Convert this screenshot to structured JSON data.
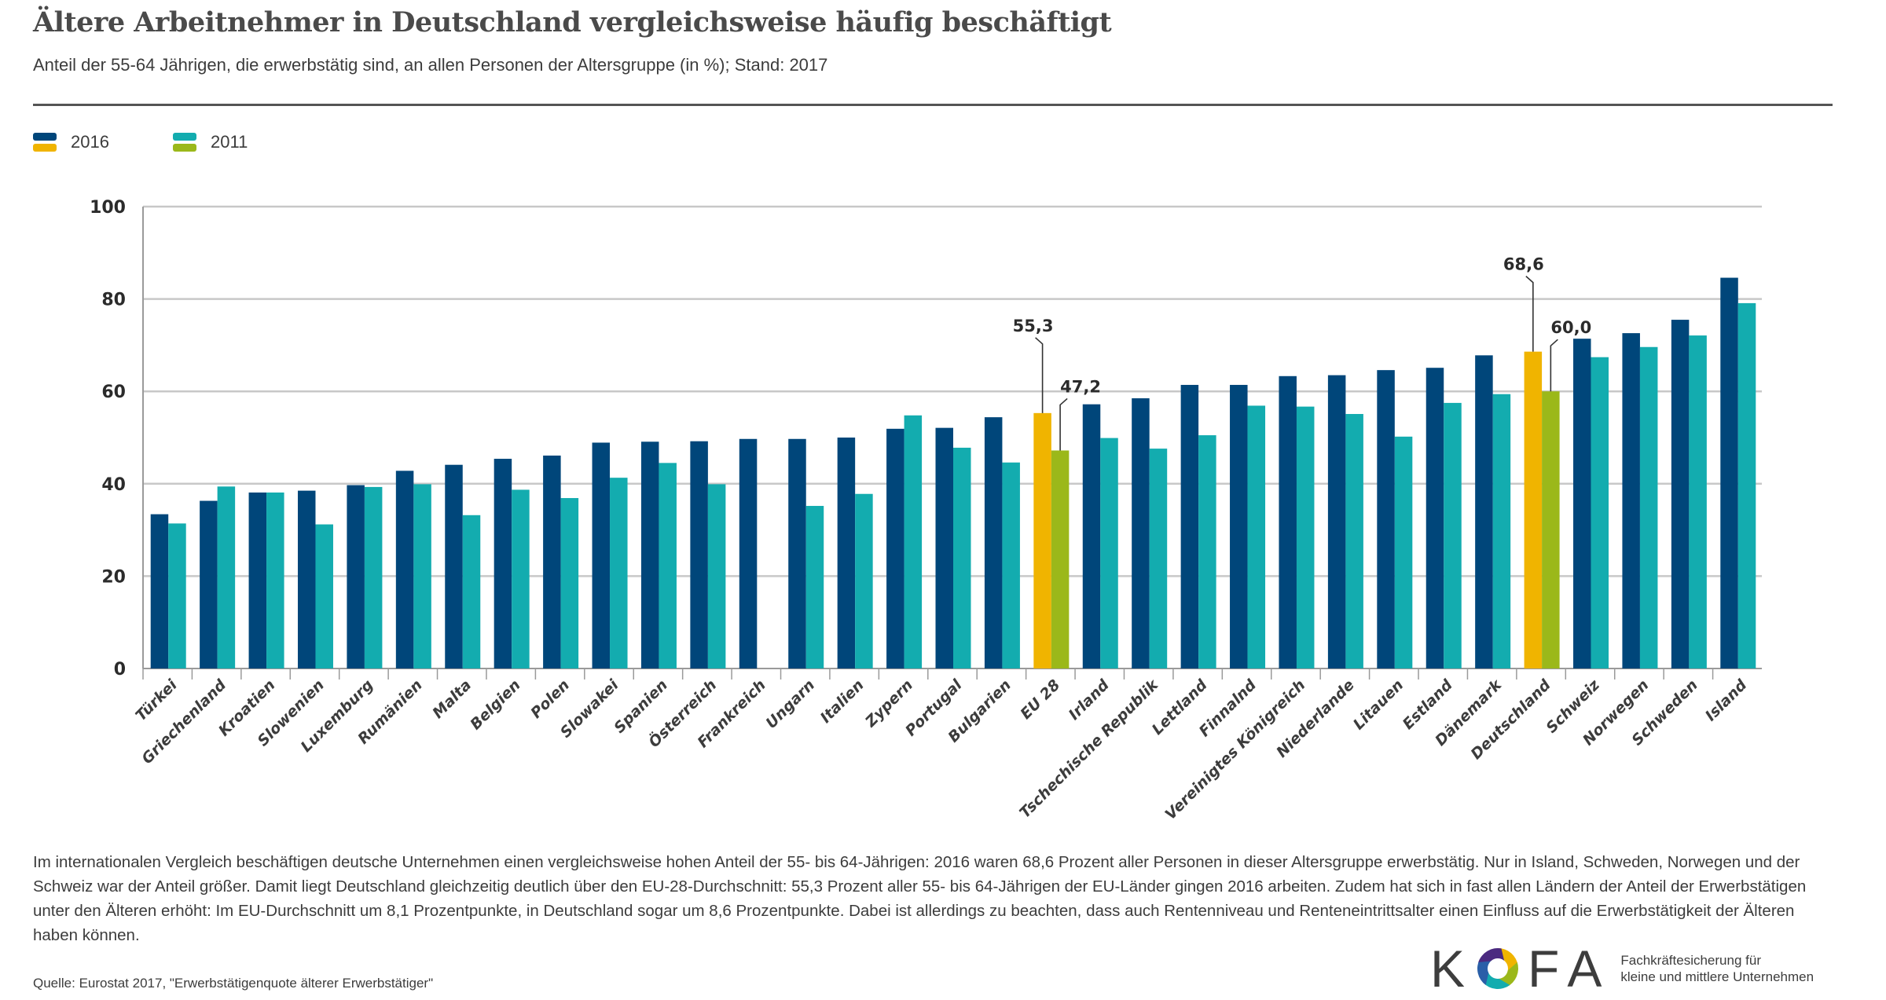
{
  "header": {
    "title": "Ältere Arbeitnehmer in Deutschland vergleichsweise häufig beschäftigt",
    "subtitle": "Anteil der 55-64 Jährigen, die erwerbstätig sind, an allen Personen der Altersgruppe (in %); Stand: 2017"
  },
  "legend": [
    {
      "label": "2016",
      "colors": [
        "#00467a",
        "#f0b400"
      ]
    },
    {
      "label": "2011",
      "colors": [
        "#13acaf",
        "#9bb81a"
      ]
    }
  ],
  "colors": {
    "s2016": "#00467a",
    "s2011": "#13acaf",
    "highlight2016": "#f0b400",
    "highlight2011": "#9bb81a",
    "grid": "#c8c8c8",
    "axis_text": "#2b2b2b",
    "label_text": "#3c3c3c"
  },
  "chart_data": {
    "type": "bar",
    "title": "Ältere Arbeitnehmer in Deutschland vergleichsweise häufig beschäftigt",
    "subtitle": "Anteil der 55-64 Jährigen, die erwerbstätig sind, an allen Personen der Altersgruppe (in %); Stand: 2017",
    "xlabel": "",
    "ylabel": "",
    "ylim": [
      0,
      100
    ],
    "yticks": [
      0,
      20,
      40,
      60,
      80,
      100
    ],
    "grid": true,
    "legend_position": "top-left",
    "categories": [
      "Türkei",
      "Griechenland",
      "Kroatien",
      "Slowenien",
      "Luxemburg",
      "Rumänien",
      "Malta",
      "Belgien",
      "Polen",
      "Slowakei",
      "Spanien",
      "Österreich",
      "Frankreich",
      "Ungarn",
      "Italien",
      "Zypern",
      "Portugal",
      "Bulgarien",
      "EU 28",
      "Irland",
      "Tschechische Republik",
      "Lettland",
      "Finnalnd",
      "Vereinigtes Königreich",
      "Niederlande",
      "Litauen",
      "Estland",
      "Dänemark",
      "Deutschland",
      "Schweiz",
      "Norwegen",
      "Schweden",
      "Island"
    ],
    "highlight_categories": [
      "EU 28",
      "Deutschland"
    ],
    "series": [
      {
        "name": "2016",
        "values": [
          33.4,
          36.3,
          38.1,
          38.5,
          39.7,
          42.8,
          44.1,
          45.4,
          46.1,
          48.9,
          49.1,
          49.2,
          49.7,
          49.7,
          50.0,
          51.9,
          52.1,
          54.4,
          55.3,
          57.2,
          58.5,
          61.4,
          61.4,
          63.3,
          63.5,
          64.6,
          65.1,
          67.8,
          68.6,
          71.4,
          72.6,
          75.5,
          84.6
        ]
      },
      {
        "name": "2011",
        "values": [
          31.4,
          39.4,
          38.1,
          31.2,
          39.3,
          39.9,
          33.2,
          38.7,
          36.9,
          41.3,
          44.5,
          39.9,
          null,
          35.2,
          37.8,
          54.8,
          47.8,
          44.6,
          47.2,
          49.9,
          47.6,
          50.5,
          56.9,
          56.7,
          55.1,
          50.2,
          57.5,
          59.4,
          60.0,
          67.4,
          69.6,
          72.1,
          79.1
        ]
      }
    ],
    "annotations": [
      {
        "category": "EU 28",
        "series": "2016",
        "text": "55,3"
      },
      {
        "category": "EU 28",
        "series": "2011",
        "text": "47,2"
      },
      {
        "category": "Deutschland",
        "series": "2016",
        "text": "68,6"
      },
      {
        "category": "Deutschland",
        "series": "2011",
        "text": "60,0"
      }
    ]
  },
  "body_text": "Im internationalen Vergleich beschäftigen deutsche Unternehmen einen vergleichsweise hohen Anteil der 55- bis 64-Jährigen: 2016 waren 68,6 Prozent aller Personen in dieser Altersgruppe erwerbstätig. Nur in Island, Schweden, Norwegen und der Schweiz war der Anteil größer. Damit liegt Deutschland gleichzeitig deutlich über den EU-28-Durchschnitt: 55,3 Prozent aller 55- bis 64-Jährigen der EU-Länder gingen 2016 arbeiten. Zudem hat sich in fast allen Ländern der Anteil der Erwerbstätigen unter den Älteren erhöht: Im EU-Durchschnitt um 8,1 Prozentpunkte, in Deutschland sogar um 8,6 Prozentpunkte. Dabei ist allerdings zu beachten, dass auch Rentenniveau und Renteneintrittsalter einen Einfluss auf die Erwerbstätigkeit der Älteren haben können.",
  "source": "Quelle: Eurostat 2017, \"Erwerbstätigenquote älterer Erwerbstätiger\"",
  "logo": {
    "letters": [
      "K",
      "F",
      "A"
    ],
    "tagline_line1": "Fachkräftesicherung für",
    "tagline_line2": "kleine und mittlere Unternehmen",
    "ring_colors": [
      "#f0b400",
      "#9bb81a",
      "#13acaf",
      "#2a5fa8",
      "#4b2a80"
    ]
  }
}
